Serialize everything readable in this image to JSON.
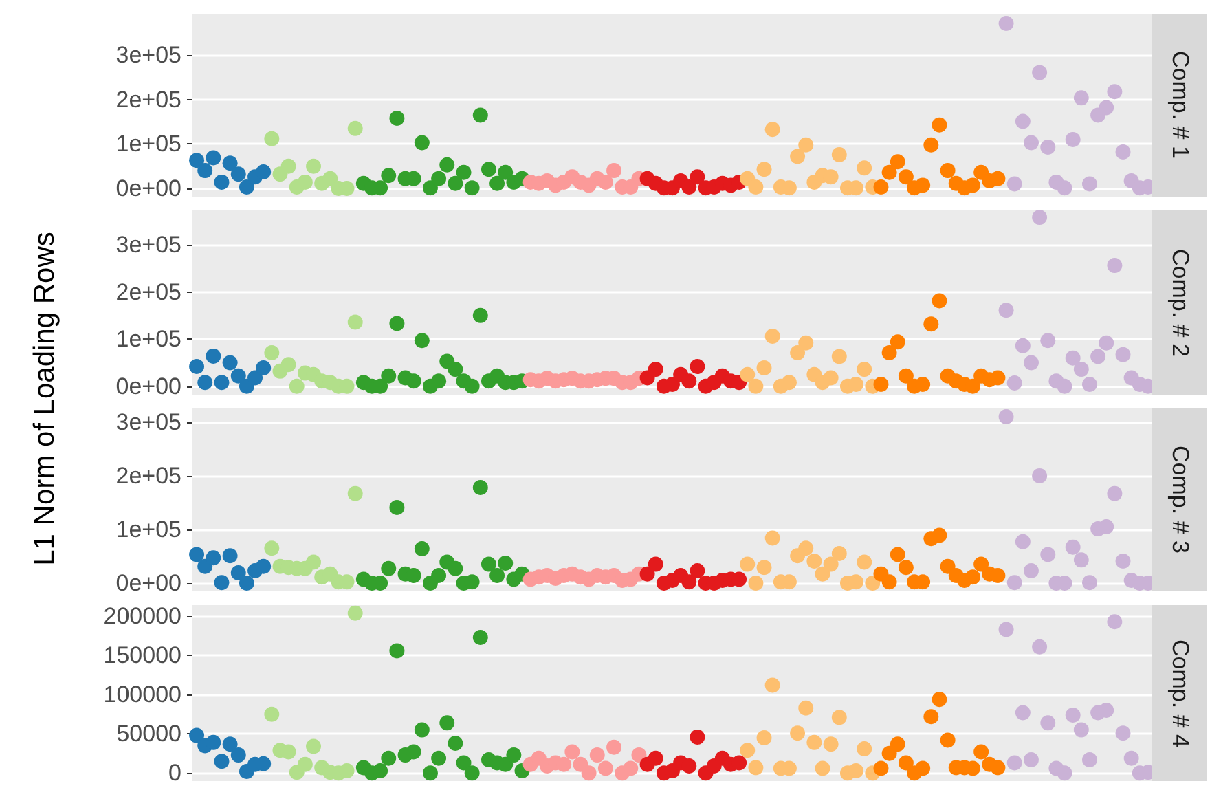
{
  "chart_data": [
    {
      "type": "scatter",
      "annotations": [
        "Comp. # 1"
      ],
      "ylabel": "L1 Norm of Loading Rows",
      "categories": [
        null,
        null,
        null,
        null,
        null,
        null,
        null,
        null,
        null,
        null,
        null,
        null,
        null,
        null,
        null,
        null,
        null,
        null,
        null,
        null,
        null,
        null,
        null,
        null,
        null,
        null,
        null,
        null,
        null,
        null,
        null,
        null,
        null,
        null,
        null,
        null,
        null,
        null,
        null,
        null,
        null,
        null,
        null,
        null,
        null,
        null,
        null,
        null,
        null,
        null,
        null,
        null,
        null,
        null,
        null,
        null,
        null,
        null,
        null,
        null,
        null,
        null,
        null,
        null,
        null,
        null,
        null,
        null,
        null,
        null,
        null,
        null,
        null,
        null,
        null,
        null,
        null,
        null,
        null,
        null,
        null,
        null,
        null,
        null,
        null,
        null,
        null,
        null,
        null,
        null,
        null,
        null,
        null,
        null,
        null,
        null,
        null,
        null,
        null,
        null,
        null,
        null,
        null,
        null,
        null,
        null,
        null,
        null,
        null,
        null,
        null,
        null,
        null,
        null,
        null
      ],
      "ylim": [
        -18750,
        393750
      ],
      "yticks": [
        {
          "value": 0,
          "label": "0e+00"
        },
        {
          "value": 100000,
          "label": "1e+05"
        },
        {
          "value": 200000,
          "label": "2e+05"
        },
        {
          "value": 300000,
          "label": "3e+05"
        }
      ],
      "grid": "y",
      "marker": "circle",
      "tick_labels": "y",
      "values": [
        63000,
        40000,
        69000,
        14000,
        57000,
        32000,
        3000,
        26000,
        37000,
        112000,
        32000,
        50000,
        3000,
        14000,
        50000,
        11000,
        22000,
        0,
        0,
        135000,
        11000,
        1000,
        1000,
        29000,
        158000,
        22000,
        22000,
        103000,
        1000,
        22000,
        53000,
        11000,
        36000,
        1000,
        165000,
        43000,
        11000,
        36000,
        14000,
        22000,
        14000,
        11000,
        17000,
        7000,
        14000,
        26000,
        14000,
        7000,
        22000,
        14000,
        40000,
        3000,
        3000,
        22000,
        22000,
        11000,
        1000,
        1000,
        17000,
        3000,
        26000,
        1000,
        3000,
        11000,
        7000,
        14000,
        22000,
        3000,
        43000,
        133000,
        3000,
        1000,
        72000,
        98000,
        14000,
        29000,
        26000,
        76000,
        1000,
        1000,
        46000,
        3000,
        3000,
        36000,
        60000,
        26000,
        1000,
        7000,
        98000,
        143000,
        40000,
        11000,
        1000,
        7000,
        36000,
        17000,
        22000,
        372000,
        10000,
        151000,
        103000,
        261000,
        93000,
        14000,
        1000,
        110000,
        204000,
        10000,
        165000,
        182000,
        218000,
        82000,
        17000,
        1000,
        3000
      ],
      "colors": [
        "#1f78b4",
        "#1f78b4",
        "#1f78b4",
        "#1f78b4",
        "#1f78b4",
        "#1f78b4",
        "#1f78b4",
        "#1f78b4",
        "#1f78b4",
        "#b2df8a",
        "#b2df8a",
        "#b2df8a",
        "#b2df8a",
        "#b2df8a",
        "#b2df8a",
        "#b2df8a",
        "#b2df8a",
        "#b2df8a",
        "#b2df8a",
        "#b2df8a",
        "#33a02c",
        "#33a02c",
        "#33a02c",
        "#33a02c",
        "#33a02c",
        "#33a02c",
        "#33a02c",
        "#33a02c",
        "#33a02c",
        "#33a02c",
        "#33a02c",
        "#33a02c",
        "#33a02c",
        "#33a02c",
        "#33a02c",
        "#33a02c",
        "#33a02c",
        "#33a02c",
        "#33a02c",
        "#33a02c",
        "#fb9a99",
        "#fb9a99",
        "#fb9a99",
        "#fb9a99",
        "#fb9a99",
        "#fb9a99",
        "#fb9a99",
        "#fb9a99",
        "#fb9a99",
        "#fb9a99",
        "#fb9a99",
        "#fb9a99",
        "#fb9a99",
        "#fb9a99",
        "#e31a1c",
        "#e31a1c",
        "#e31a1c",
        "#e31a1c",
        "#e31a1c",
        "#e31a1c",
        "#e31a1c",
        "#e31a1c",
        "#e31a1c",
        "#e31a1c",
        "#e31a1c",
        "#e31a1c",
        "#fdbf6f",
        "#fdbf6f",
        "#fdbf6f",
        "#fdbf6f",
        "#fdbf6f",
        "#fdbf6f",
        "#fdbf6f",
        "#fdbf6f",
        "#fdbf6f",
        "#fdbf6f",
        "#fdbf6f",
        "#fdbf6f",
        "#fdbf6f",
        "#fdbf6f",
        "#fdbf6f",
        "#fdbf6f",
        "#ff7f00",
        "#ff7f00",
        "#ff7f00",
        "#ff7f00",
        "#ff7f00",
        "#ff7f00",
        "#ff7f00",
        "#ff7f00",
        "#ff7f00",
        "#ff7f00",
        "#ff7f00",
        "#ff7f00",
        "#ff7f00",
        "#ff7f00",
        "#ff7f00",
        "#cab2d6",
        "#cab2d6",
        "#cab2d6",
        "#cab2d6",
        "#cab2d6",
        "#cab2d6",
        "#cab2d6",
        "#cab2d6",
        "#cab2d6",
        "#cab2d6",
        "#cab2d6",
        "#cab2d6",
        "#cab2d6",
        "#cab2d6",
        "#cab2d6",
        "#cab2d6",
        "#cab2d6",
        "#cab2d6"
      ]
    },
    {
      "type": "scatter",
      "annotations": [
        "Comp. # 2"
      ],
      "categories": [
        null,
        null,
        null,
        null,
        null,
        null,
        null,
        null,
        null,
        null,
        null,
        null,
        null,
        null,
        null,
        null,
        null,
        null,
        null,
        null,
        null,
        null,
        null,
        null,
        null,
        null,
        null,
        null,
        null,
        null,
        null,
        null,
        null,
        null,
        null,
        null,
        null,
        null,
        null,
        null,
        null,
        null,
        null,
        null,
        null,
        null,
        null,
        null,
        null,
        null,
        null,
        null,
        null,
        null,
        null,
        null,
        null,
        null,
        null,
        null,
        null,
        null,
        null,
        null,
        null,
        null,
        null,
        null,
        null,
        null,
        null,
        null,
        null,
        null,
        null,
        null,
        null,
        null,
        null,
        null,
        null,
        null,
        null,
        null,
        null,
        null,
        null,
        null,
        null,
        null,
        null,
        null,
        null,
        null,
        null,
        null,
        null,
        null,
        null,
        null,
        null,
        null,
        null,
        null,
        null,
        null,
        null,
        null,
        null,
        null,
        null,
        null,
        null,
        null,
        null
      ],
      "ylim": [
        -17750,
        372750
      ],
      "yticks": [
        {
          "value": 0,
          "label": "0e+00"
        },
        {
          "value": 100000,
          "label": "1e+05"
        },
        {
          "value": 200000,
          "label": "2e+05"
        },
        {
          "value": 300000,
          "label": "3e+05"
        }
      ],
      "grid": "y",
      "marker": "circle",
      "tick_labels": "y",
      "values": [
        42000,
        8000,
        64000,
        8000,
        50000,
        22000,
        0,
        18000,
        39000,
        71000,
        32000,
        46000,
        0,
        28000,
        25000,
        11000,
        8000,
        0,
        0,
        136000,
        8000,
        0,
        0,
        22000,
        133000,
        18000,
        11000,
        97000,
        0,
        11000,
        53000,
        36000,
        11000,
        0,
        150000,
        11000,
        22000,
        8000,
        8000,
        11000,
        14000,
        11000,
        17000,
        11000,
        14000,
        17000,
        11000,
        11000,
        14000,
        17000,
        17000,
        8000,
        8000,
        17000,
        18000,
        36000,
        0,
        4000,
        25000,
        11000,
        42000,
        0,
        8000,
        22000,
        11000,
        8000,
        25000,
        0,
        39000,
        106000,
        0,
        8000,
        71000,
        92000,
        25000,
        8000,
        18000,
        63000,
        0,
        4000,
        36000,
        0,
        4000,
        71000,
        94000,
        22000,
        0,
        4000,
        132000,
        181000,
        22000,
        11000,
        4000,
        0,
        22000,
        14000,
        18000,
        161000,
        7000,
        86000,
        50000,
        358000,
        97000,
        11000,
        0,
        60000,
        36000,
        4000,
        63000,
        92000,
        256000,
        67000,
        18000,
        4000,
        0
      ],
      "colors": [
        "#1f78b4",
        "#1f78b4",
        "#1f78b4",
        "#1f78b4",
        "#1f78b4",
        "#1f78b4",
        "#1f78b4",
        "#1f78b4",
        "#1f78b4",
        "#b2df8a",
        "#b2df8a",
        "#b2df8a",
        "#b2df8a",
        "#b2df8a",
        "#b2df8a",
        "#b2df8a",
        "#b2df8a",
        "#b2df8a",
        "#b2df8a",
        "#b2df8a",
        "#33a02c",
        "#33a02c",
        "#33a02c",
        "#33a02c",
        "#33a02c",
        "#33a02c",
        "#33a02c",
        "#33a02c",
        "#33a02c",
        "#33a02c",
        "#33a02c",
        "#33a02c",
        "#33a02c",
        "#33a02c",
        "#33a02c",
        "#33a02c",
        "#33a02c",
        "#33a02c",
        "#33a02c",
        "#33a02c",
        "#fb9a99",
        "#fb9a99",
        "#fb9a99",
        "#fb9a99",
        "#fb9a99",
        "#fb9a99",
        "#fb9a99",
        "#fb9a99",
        "#fb9a99",
        "#fb9a99",
        "#fb9a99",
        "#fb9a99",
        "#fb9a99",
        "#fb9a99",
        "#e31a1c",
        "#e31a1c",
        "#e31a1c",
        "#e31a1c",
        "#e31a1c",
        "#e31a1c",
        "#e31a1c",
        "#e31a1c",
        "#e31a1c",
        "#e31a1c",
        "#e31a1c",
        "#e31a1c",
        "#fdbf6f",
        "#fdbf6f",
        "#fdbf6f",
        "#fdbf6f",
        "#fdbf6f",
        "#fdbf6f",
        "#fdbf6f",
        "#fdbf6f",
        "#fdbf6f",
        "#fdbf6f",
        "#fdbf6f",
        "#fdbf6f",
        "#fdbf6f",
        "#fdbf6f",
        "#fdbf6f",
        "#fdbf6f",
        "#ff7f00",
        "#ff7f00",
        "#ff7f00",
        "#ff7f00",
        "#ff7f00",
        "#ff7f00",
        "#ff7f00",
        "#ff7f00",
        "#ff7f00",
        "#ff7f00",
        "#ff7f00",
        "#ff7f00",
        "#ff7f00",
        "#ff7f00",
        "#ff7f00",
        "#cab2d6",
        "#cab2d6",
        "#cab2d6",
        "#cab2d6",
        "#cab2d6",
        "#cab2d6",
        "#cab2d6",
        "#cab2d6",
        "#cab2d6",
        "#cab2d6",
        "#cab2d6",
        "#cab2d6",
        "#cab2d6",
        "#cab2d6",
        "#cab2d6",
        "#cab2d6",
        "#cab2d6",
        "#cab2d6"
      ]
    },
    {
      "type": "scatter",
      "annotations": [
        "Comp. # 3"
      ],
      "categories": [
        null,
        null,
        null,
        null,
        null,
        null,
        null,
        null,
        null,
        null,
        null,
        null,
        null,
        null,
        null,
        null,
        null,
        null,
        null,
        null,
        null,
        null,
        null,
        null,
        null,
        null,
        null,
        null,
        null,
        null,
        null,
        null,
        null,
        null,
        null,
        null,
        null,
        null,
        null,
        null,
        null,
        null,
        null,
        null,
        null,
        null,
        null,
        null,
        null,
        null,
        null,
        null,
        null,
        null,
        null,
        null,
        null,
        null,
        null,
        null,
        null,
        null,
        null,
        null,
        null,
        null,
        null,
        null,
        null,
        null,
        null,
        null,
        null,
        null,
        null,
        null,
        null,
        null,
        null,
        null,
        null,
        null,
        null,
        null,
        null,
        null,
        null,
        null,
        null,
        null,
        null,
        null,
        null,
        null,
        null,
        null,
        null,
        null,
        null,
        null,
        null,
        null,
        null,
        null,
        null,
        null,
        null,
        null,
        null,
        null,
        null,
        null,
        null,
        null,
        null
      ],
      "ylim": [
        -15500,
        325500
      ],
      "yticks": [
        {
          "value": 0,
          "label": "0e+00"
        },
        {
          "value": 100000,
          "label": "1e+05"
        },
        {
          "value": 200000,
          "label": "2e+05"
        },
        {
          "value": 300000,
          "label": "3e+05"
        }
      ],
      "grid": "y",
      "marker": "circle",
      "tick_labels": "y",
      "values": [
        53000,
        31000,
        47000,
        1000,
        51000,
        19000,
        0,
        23000,
        31000,
        65000,
        31000,
        29000,
        27000,
        27000,
        39000,
        11000,
        17000,
        2000,
        2000,
        167000,
        7000,
        0,
        0,
        27000,
        141000,
        17000,
        14000,
        64000,
        0,
        14000,
        39000,
        27000,
        0,
        2000,
        178000,
        35000,
        14000,
        37000,
        7000,
        17000,
        7000,
        11000,
        14000,
        9000,
        14000,
        17000,
        11000,
        7000,
        14000,
        11000,
        14000,
        5000,
        7000,
        17000,
        17000,
        35000,
        0,
        5000,
        14000,
        2000,
        23000,
        0,
        0,
        5000,
        7000,
        7000,
        35000,
        0,
        29000,
        84000,
        2000,
        2000,
        51000,
        65000,
        41000,
        17000,
        35000,
        55000,
        0,
        2000,
        39000,
        0,
        17000,
        2000,
        53000,
        29000,
        2000,
        2000,
        83000,
        89000,
        31000,
        14000,
        5000,
        11000,
        35000,
        17000,
        14000,
        310000,
        1000,
        77000,
        23000,
        200000,
        53000,
        0,
        0,
        67000,
        43000,
        1000,
        101000,
        105000,
        167000,
        41000,
        5000,
        0,
        0
      ],
      "colors": [
        "#1f78b4",
        "#1f78b4",
        "#1f78b4",
        "#1f78b4",
        "#1f78b4",
        "#1f78b4",
        "#1f78b4",
        "#1f78b4",
        "#1f78b4",
        "#b2df8a",
        "#b2df8a",
        "#b2df8a",
        "#b2df8a",
        "#b2df8a",
        "#b2df8a",
        "#b2df8a",
        "#b2df8a",
        "#b2df8a",
        "#b2df8a",
        "#b2df8a",
        "#33a02c",
        "#33a02c",
        "#33a02c",
        "#33a02c",
        "#33a02c",
        "#33a02c",
        "#33a02c",
        "#33a02c",
        "#33a02c",
        "#33a02c",
        "#33a02c",
        "#33a02c",
        "#33a02c",
        "#33a02c",
        "#33a02c",
        "#33a02c",
        "#33a02c",
        "#33a02c",
        "#33a02c",
        "#33a02c",
        "#fb9a99",
        "#fb9a99",
        "#fb9a99",
        "#fb9a99",
        "#fb9a99",
        "#fb9a99",
        "#fb9a99",
        "#fb9a99",
        "#fb9a99",
        "#fb9a99",
        "#fb9a99",
        "#fb9a99",
        "#fb9a99",
        "#fb9a99",
        "#e31a1c",
        "#e31a1c",
        "#e31a1c",
        "#e31a1c",
        "#e31a1c",
        "#e31a1c",
        "#e31a1c",
        "#e31a1c",
        "#e31a1c",
        "#e31a1c",
        "#e31a1c",
        "#e31a1c",
        "#fdbf6f",
        "#fdbf6f",
        "#fdbf6f",
        "#fdbf6f",
        "#fdbf6f",
        "#fdbf6f",
        "#fdbf6f",
        "#fdbf6f",
        "#fdbf6f",
        "#fdbf6f",
        "#fdbf6f",
        "#fdbf6f",
        "#fdbf6f",
        "#fdbf6f",
        "#fdbf6f",
        "#fdbf6f",
        "#ff7f00",
        "#ff7f00",
        "#ff7f00",
        "#ff7f00",
        "#ff7f00",
        "#ff7f00",
        "#ff7f00",
        "#ff7f00",
        "#ff7f00",
        "#ff7f00",
        "#ff7f00",
        "#ff7f00",
        "#ff7f00",
        "#ff7f00",
        "#ff7f00",
        "#cab2d6",
        "#cab2d6",
        "#cab2d6",
        "#cab2d6",
        "#cab2d6",
        "#cab2d6",
        "#cab2d6",
        "#cab2d6",
        "#cab2d6",
        "#cab2d6",
        "#cab2d6",
        "#cab2d6",
        "#cab2d6",
        "#cab2d6",
        "#cab2d6",
        "#cab2d6",
        "#cab2d6",
        "#cab2d6"
      ]
    },
    {
      "type": "scatter",
      "annotations": [
        "Comp. # 4"
      ],
      "categories": [
        null,
        null,
        null,
        null,
        null,
        null,
        null,
        null,
        null,
        null,
        null,
        null,
        null,
        null,
        null,
        null,
        null,
        null,
        null,
        null,
        null,
        null,
        null,
        null,
        null,
        null,
        null,
        null,
        null,
        null,
        null,
        null,
        null,
        null,
        null,
        null,
        null,
        null,
        null,
        null,
        null,
        null,
        null,
        null,
        null,
        null,
        null,
        null,
        null,
        null,
        null,
        null,
        null,
        null,
        null,
        null,
        null,
        null,
        null,
        null,
        null,
        null,
        null,
        null,
        null,
        null,
        null,
        null,
        null,
        null,
        null,
        null,
        null,
        null,
        null,
        null,
        null,
        null,
        null,
        null,
        null,
        null,
        null,
        null,
        null,
        null,
        null,
        null,
        null,
        null,
        null,
        null,
        null,
        null,
        null,
        null,
        null,
        null,
        null,
        null,
        null,
        null,
        null,
        null,
        null,
        null,
        null,
        null,
        null,
        null,
        null,
        null,
        null,
        null,
        null
      ],
      "ylim": [
        -10200,
        214200
      ],
      "yticks": [
        0,
        50000,
        100000,
        150000,
        200000
      ],
      "grid": "y",
      "marker": "circle",
      "tick_labels": "y",
      "values": [
        48000,
        35000,
        39000,
        15000,
        37000,
        23000,
        2000,
        11000,
        12000,
        75000,
        29000,
        27000,
        1000,
        11000,
        34000,
        7000,
        1000,
        0,
        3000,
        204000,
        7000,
        0,
        3000,
        19000,
        156000,
        23000,
        27000,
        55000,
        0,
        19000,
        64000,
        38000,
        13000,
        0,
        173000,
        17000,
        13000,
        11000,
        23000,
        3000,
        11000,
        19000,
        9000,
        13000,
        11000,
        27000,
        11000,
        0,
        23000,
        6000,
        33000,
        0,
        6000,
        23000,
        11000,
        19000,
        0,
        3000,
        13000,
        9000,
        46000,
        0,
        9000,
        19000,
        11000,
        13000,
        29000,
        7000,
        45000,
        112000,
        6000,
        6000,
        51000,
        83000,
        39000,
        6000,
        37000,
        71000,
        0,
        3000,
        31000,
        0,
        6000,
        25000,
        37000,
        13000,
        0,
        6000,
        72000,
        94000,
        42000,
        7000,
        7000,
        6000,
        27000,
        11000,
        7000,
        183000,
        13000,
        77000,
        17000,
        161000,
        64000,
        6000,
        0,
        74000,
        55000,
        17000,
        77000,
        80000,
        193000,
        51000,
        19000,
        0,
        1000
      ],
      "colors": [
        "#1f78b4",
        "#1f78b4",
        "#1f78b4",
        "#1f78b4",
        "#1f78b4",
        "#1f78b4",
        "#1f78b4",
        "#1f78b4",
        "#1f78b4",
        "#b2df8a",
        "#b2df8a",
        "#b2df8a",
        "#b2df8a",
        "#b2df8a",
        "#b2df8a",
        "#b2df8a",
        "#b2df8a",
        "#b2df8a",
        "#b2df8a",
        "#b2df8a",
        "#33a02c",
        "#33a02c",
        "#33a02c",
        "#33a02c",
        "#33a02c",
        "#33a02c",
        "#33a02c",
        "#33a02c",
        "#33a02c",
        "#33a02c",
        "#33a02c",
        "#33a02c",
        "#33a02c",
        "#33a02c",
        "#33a02c",
        "#33a02c",
        "#33a02c",
        "#33a02c",
        "#33a02c",
        "#33a02c",
        "#fb9a99",
        "#fb9a99",
        "#fb9a99",
        "#fb9a99",
        "#fb9a99",
        "#fb9a99",
        "#fb9a99",
        "#fb9a99",
        "#fb9a99",
        "#fb9a99",
        "#fb9a99",
        "#fb9a99",
        "#fb9a99",
        "#fb9a99",
        "#e31a1c",
        "#e31a1c",
        "#e31a1c",
        "#e31a1c",
        "#e31a1c",
        "#e31a1c",
        "#e31a1c",
        "#e31a1c",
        "#e31a1c",
        "#e31a1c",
        "#e31a1c",
        "#e31a1c",
        "#fdbf6f",
        "#fdbf6f",
        "#fdbf6f",
        "#fdbf6f",
        "#fdbf6f",
        "#fdbf6f",
        "#fdbf6f",
        "#fdbf6f",
        "#fdbf6f",
        "#fdbf6f",
        "#fdbf6f",
        "#fdbf6f",
        "#fdbf6f",
        "#fdbf6f",
        "#fdbf6f",
        "#fdbf6f",
        "#ff7f00",
        "#ff7f00",
        "#ff7f00",
        "#ff7f00",
        "#ff7f00",
        "#ff7f00",
        "#ff7f00",
        "#ff7f00",
        "#ff7f00",
        "#ff7f00",
        "#ff7f00",
        "#ff7f00",
        "#ff7f00",
        "#ff7f00",
        "#ff7f00",
        "#cab2d6",
        "#cab2d6",
        "#cab2d6",
        "#cab2d6",
        "#cab2d6",
        "#cab2d6",
        "#cab2d6",
        "#cab2d6",
        "#cab2d6",
        "#cab2d6",
        "#cab2d6",
        "#cab2d6",
        "#cab2d6",
        "#cab2d6",
        "#cab2d6",
        "#cab2d6",
        "#cab2d6",
        "#cab2d6"
      ]
    }
  ]
}
